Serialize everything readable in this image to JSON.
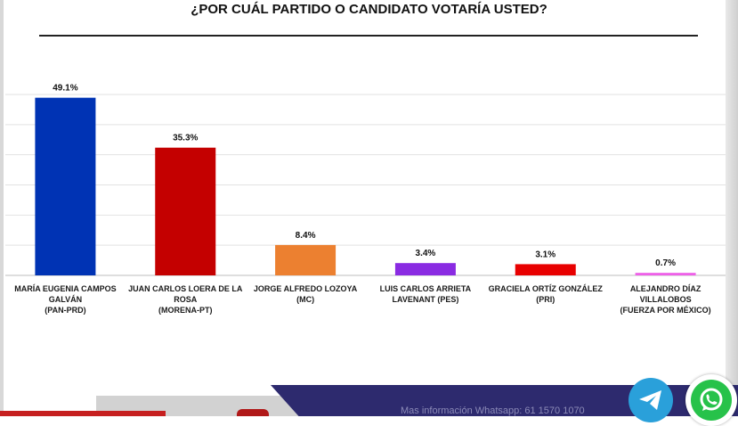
{
  "chart_data": {
    "type": "bar",
    "title": "¿POR CUÁL PARTIDO O CANDIDATO VOTARÍA USTED?",
    "xlabel": "",
    "ylabel": "",
    "ylim": [
      0,
      50
    ],
    "grid": true,
    "legend": "none",
    "categories": [
      [
        "MARÍA EUGENIA CAMPOS",
        "GALVÁN",
        "(PAN-PRD)"
      ],
      [
        "JUAN CARLOS LOERA DE LA",
        "ROSA",
        "(MORENA-PT)"
      ],
      [
        "JORGE ALFREDO LOZOYA",
        "(MC)"
      ],
      [
        "LUIS CARLOS ARRIETA",
        "LAVENANT (PES)"
      ],
      [
        "GRACIELA ORTÍZ GONZÁLEZ",
        "(PRI)"
      ],
      [
        "ALEJANDRO DÍAZ",
        "VILLALOBOS",
        "(FUERZA POR MÉXICO)"
      ]
    ],
    "values": [
      49.1,
      35.3,
      8.4,
      3.4,
      3.1,
      0.7
    ],
    "value_labels": [
      "49.1%",
      "35.3%",
      "8.4%",
      "3.4%",
      "3.1%",
      "0.7%"
    ],
    "colors": [
      "#0033b4",
      "#c40000",
      "#ec8030",
      "#8a2be2",
      "#e80000",
      "#ee60e8"
    ]
  },
  "footer": {
    "contact_text": "Mas información Whatsapp: 61 1570 1070"
  },
  "icons": {
    "telegram": "telegram-icon",
    "whatsapp": "whatsapp-icon"
  }
}
